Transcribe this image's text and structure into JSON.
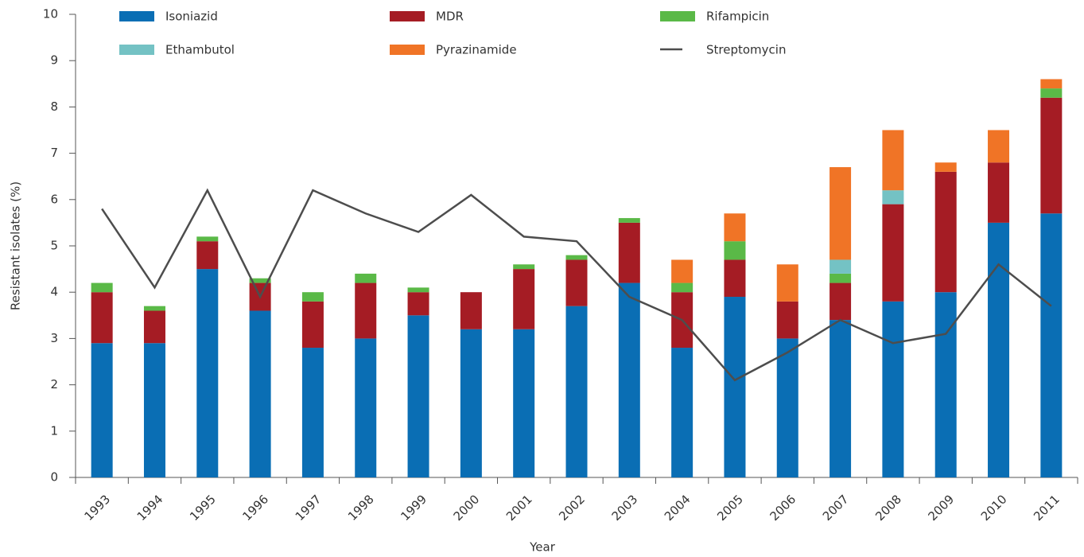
{
  "chart_data": {
    "type": "bar",
    "stacked": true,
    "x_label": "Year",
    "y_label": "Resistant isolates (%)",
    "categories": [
      "1993",
      "1994",
      "1995",
      "1996",
      "1997",
      "1998",
      "1999",
      "2000",
      "2001",
      "2002",
      "2003",
      "2004",
      "2005",
      "2006",
      "2007",
      "2008",
      "2009",
      "2010",
      "2011"
    ],
    "ylim": [
      0,
      10
    ],
    "yticks": [
      0,
      1,
      2,
      3,
      4,
      5,
      6,
      7,
      8,
      9,
      10
    ],
    "grid": false,
    "series": [
      {
        "name": "Isoniazid",
        "color": "#0a6eb4",
        "values": [
          2.9,
          2.9,
          4.5,
          3.6,
          2.8,
          3.0,
          3.5,
          3.2,
          3.2,
          3.7,
          4.2,
          2.8,
          3.9,
          3.0,
          3.4,
          3.8,
          4.0,
          5.5,
          5.7
        ]
      },
      {
        "name": "MDR",
        "color": "#a51c24",
        "values": [
          1.1,
          0.7,
          0.6,
          0.6,
          1.0,
          1.2,
          0.5,
          0.8,
          1.3,
          1.0,
          1.3,
          1.2,
          0.8,
          0.8,
          0.8,
          2.1,
          2.6,
          1.3,
          2.5
        ]
      },
      {
        "name": "Rifampicin",
        "color": "#5ab947",
        "values": [
          0.2,
          0.1,
          0.1,
          0.1,
          0.2,
          0.2,
          0.1,
          0,
          0.1,
          0.1,
          0.1,
          0.2,
          0.4,
          0,
          0.2,
          0,
          0,
          0,
          0.2
        ]
      },
      {
        "name": "Ethambutol",
        "color": "#74c2c4",
        "values": [
          0,
          0,
          0,
          0,
          0,
          0,
          0,
          0,
          0,
          0,
          0,
          0,
          0,
          0,
          0.3,
          0.3,
          0,
          0,
          0
        ]
      },
      {
        "name": "Pyrazinamide",
        "color": "#f07426",
        "values": [
          0,
          0,
          0,
          0,
          0,
          0,
          0,
          0,
          0,
          0,
          0,
          0.5,
          0.6,
          0.8,
          2.0,
          1.3,
          0.2,
          0.7,
          0.2
        ]
      },
      {
        "name": "Streptomycin",
        "type": "line",
        "color": "#4d4d4d",
        "values": [
          5.8,
          4.1,
          6.2,
          3.9,
          6.2,
          5.7,
          5.3,
          6.1,
          5.2,
          5.1,
          3.9,
          3.4,
          2.1,
          2.7,
          3.4,
          2.9,
          3.1,
          4.6,
          3.7
        ]
      }
    ]
  }
}
